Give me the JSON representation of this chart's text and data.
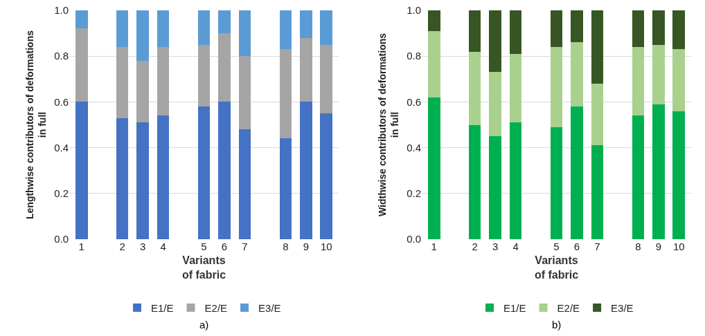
{
  "chart_data": [
    {
      "type": "bar",
      "stacked": true,
      "xlabel": "Variants\nof fabric",
      "ylabel": "Lengthwise contributors of deformations\nin full",
      "categories": [
        "1",
        null,
        "2",
        "3",
        "4",
        null,
        "5",
        "6",
        "7",
        null,
        "8",
        "9",
        "10"
      ],
      "series": [
        {
          "name": "E1/E",
          "color": "#4472c4",
          "values": [
            0.6,
            null,
            0.53,
            0.51,
            0.54,
            null,
            0.58,
            0.6,
            0.48,
            null,
            0.44,
            0.6,
            0.55
          ]
        },
        {
          "name": "E2/E",
          "color": "#a5a5a5",
          "values": [
            0.32,
            null,
            0.31,
            0.27,
            0.3,
            null,
            0.27,
            0.3,
            0.32,
            null,
            0.39,
            0.28,
            0.3
          ]
        },
        {
          "name": "E3/E",
          "color": "#5b9bd5",
          "values": [
            0.08,
            null,
            0.16,
            0.22,
            0.16,
            null,
            0.15,
            0.1,
            0.2,
            null,
            0.17,
            0.12,
            0.15
          ]
        }
      ],
      "ylim": [
        0,
        1
      ],
      "yticks": [
        {
          "value": 0,
          "label": "0.0"
        },
        {
          "value": 0.2,
          "label": "0.2"
        },
        {
          "value": 0.4,
          "label": "0.4"
        },
        {
          "value": 0.6,
          "label": "0.6"
        },
        {
          "value": 0.8,
          "label": "0.8"
        },
        {
          "value": 1,
          "label": "1.0"
        }
      ],
      "grid": "y",
      "legend": "bottom",
      "annotations": [
        "a)"
      ]
    },
    {
      "type": "bar",
      "stacked": true,
      "xlabel": "Variants\nof fabric",
      "ylabel": "Widthwise contributors of deformations\nin full",
      "categories": [
        "1",
        null,
        "2",
        "3",
        "4",
        null,
        "5",
        "6",
        "7",
        null,
        "8",
        "9",
        "10"
      ],
      "series": [
        {
          "name": "E1/E",
          "color": "#00b050",
          "values": [
            0.62,
            null,
            0.5,
            0.45,
            0.51,
            null,
            0.49,
            0.58,
            0.41,
            null,
            0.54,
            0.59,
            0.56
          ]
        },
        {
          "name": "E2/E",
          "color": "#a9d18e",
          "values": [
            0.29,
            null,
            0.32,
            0.28,
            0.3,
            null,
            0.35,
            0.28,
            0.27,
            null,
            0.3,
            0.26,
            0.27
          ]
        },
        {
          "name": "E3/E",
          "color": "#375623",
          "values": [
            0.09,
            null,
            0.18,
            0.27,
            0.19,
            null,
            0.16,
            0.14,
            0.32,
            null,
            0.16,
            0.15,
            0.17
          ]
        }
      ],
      "ylim": [
        0,
        1
      ],
      "yticks": [
        {
          "value": 0,
          "label": "0.0"
        },
        {
          "value": 0.2,
          "label": "0.2"
        },
        {
          "value": 0.4,
          "label": "0.4"
        },
        {
          "value": 0.6,
          "label": "0.6"
        },
        {
          "value": 0.8,
          "label": "0.8"
        },
        {
          "value": 1,
          "label": "1.0"
        }
      ],
      "grid": "y",
      "legend": "bottom",
      "annotations": [
        "b)"
      ]
    }
  ]
}
